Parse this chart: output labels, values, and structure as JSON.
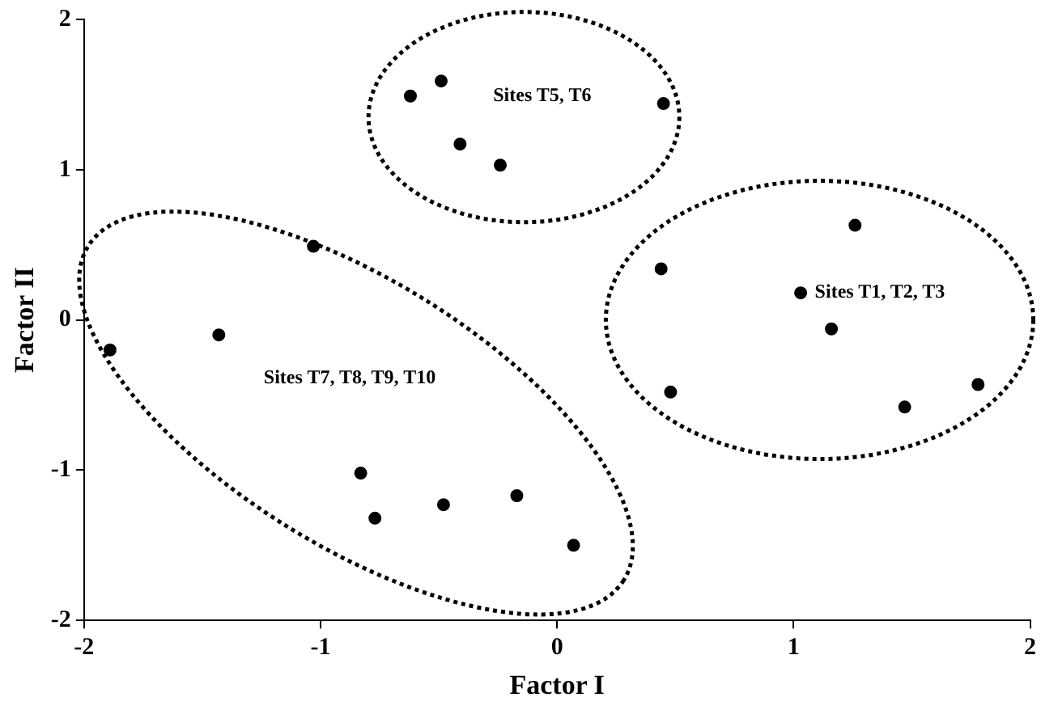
{
  "chart_data": {
    "type": "scatter",
    "xlabel": "Factor I",
    "ylabel": "Factor II",
    "x": [
      -0.62,
      -0.49,
      -0.41,
      -0.24,
      0.45,
      1.26,
      0.44,
      1.03,
      1.16,
      0.48,
      1.47,
      1.78,
      -1.03,
      -1.43,
      -1.89,
      -0.83,
      -0.77,
      -0.48,
      -0.17,
      0.07
    ],
    "series": [
      {
        "color": "#000000",
        "values": [
          1.49,
          1.59,
          1.17,
          1.03,
          1.44,
          0.63,
          0.34,
          0.18,
          -0.06,
          -0.48,
          -0.58,
          -0.43,
          0.49,
          -0.1,
          -0.2,
          -1.02,
          -1.32,
          -1.23,
          -1.17,
          -1.5
        ]
      }
    ],
    "xlim": [
      -2,
      2
    ],
    "ylim": [
      -2,
      2
    ],
    "xticks": [
      -2,
      -1,
      0,
      1,
      2
    ],
    "yticks": [
      -2,
      -1,
      0,
      1,
      2
    ],
    "grid": false,
    "legend": false,
    "marker": "circle",
    "annotations": [
      "Sites T5, T6",
      "Sites T1, T2, T3",
      "Sites T7, T8, T9, T10"
    ]
  }
}
